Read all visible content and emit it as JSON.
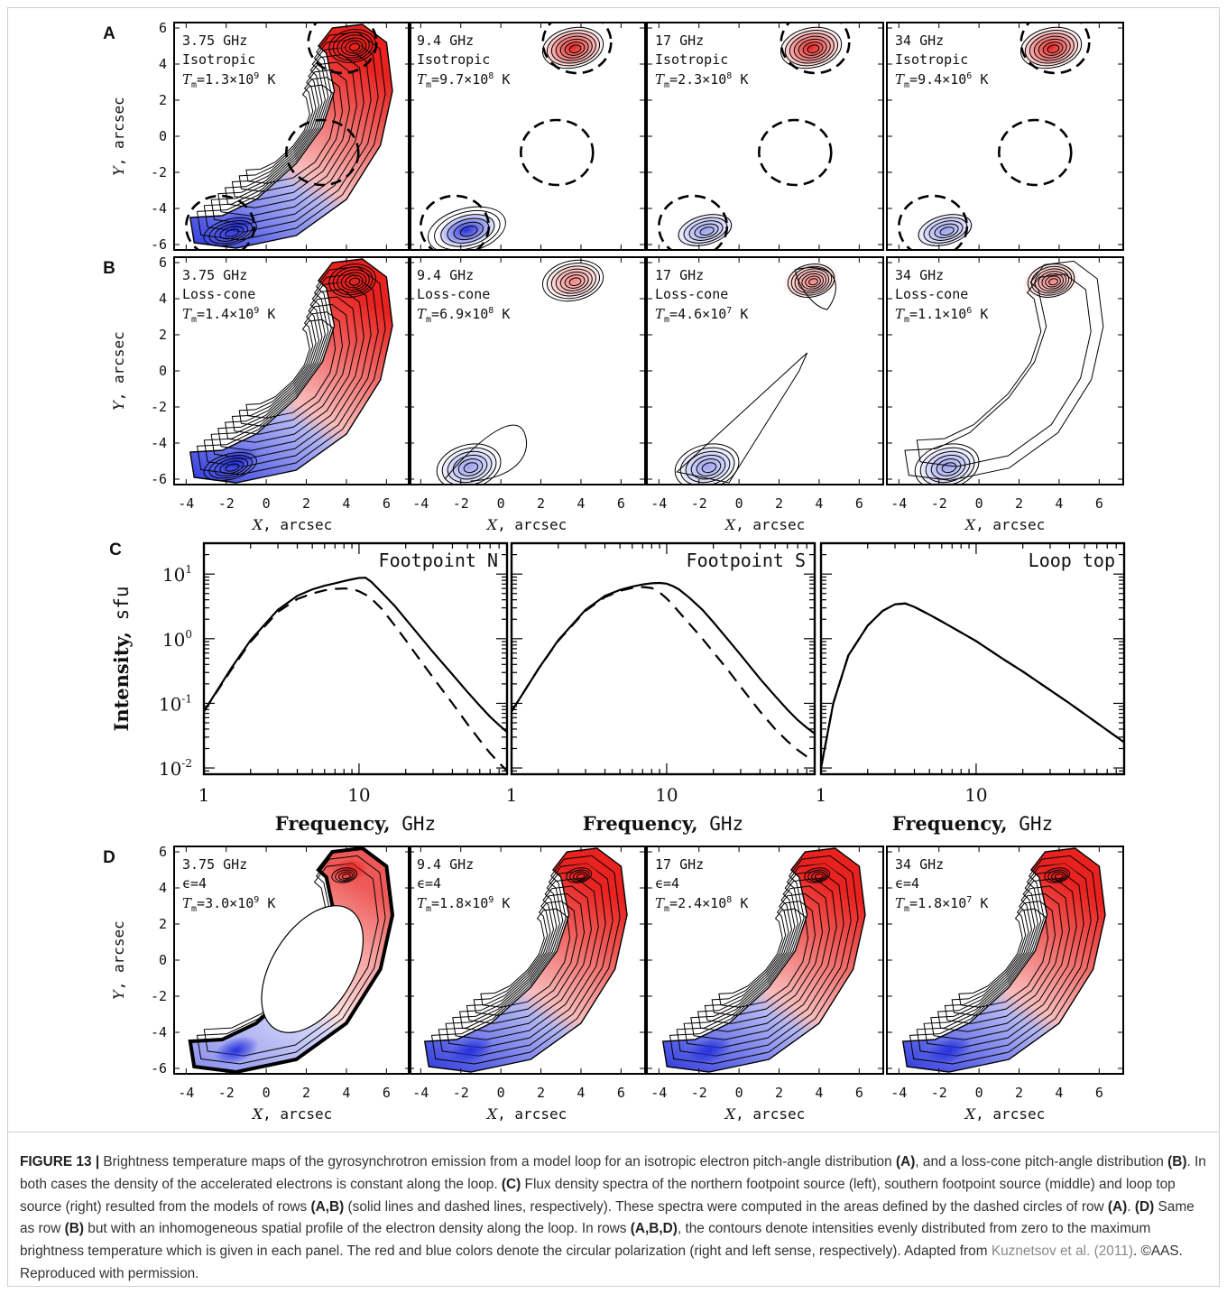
{
  "rows": [
    {
      "letter": "A",
      "panels": [
        {
          "freq": "3.75 GHz",
          "dist": "Isotropic",
          "tm": "1.3×10",
          "tmexp": "9",
          "unit": "K"
        },
        {
          "freq": "9.4 GHz",
          "dist": "Isotropic",
          "tm": "9.7×10",
          "tmexp": "8",
          "unit": "K"
        },
        {
          "freq": "17 GHz",
          "dist": "Isotropic",
          "tm": "2.3×10",
          "tmexp": "8",
          "unit": "K"
        },
        {
          "freq": "34 GHz",
          "dist": "Isotropic",
          "tm": "9.4×10",
          "tmexp": "6",
          "unit": "K"
        }
      ]
    },
    {
      "letter": "B",
      "panels": [
        {
          "freq": "3.75 GHz",
          "dist": "Loss-cone",
          "tm": "1.4×10",
          "tmexp": "9",
          "unit": "K"
        },
        {
          "freq": "9.4 GHz",
          "dist": "Loss-cone",
          "tm": "6.9×10",
          "tmexp": "8",
          "unit": "K"
        },
        {
          "freq": "17 GHz",
          "dist": "Loss-cone",
          "tm": "4.6×10",
          "tmexp": "7",
          "unit": "K"
        },
        {
          "freq": "34 GHz",
          "dist": "Loss-cone",
          "tm": "1.1×10",
          "tmexp": "6",
          "unit": "K"
        }
      ]
    },
    {
      "letter": "D",
      "panels": [
        {
          "freq": "3.75 GHz",
          "dist": "ϵ=4",
          "tm": "3.0×10",
          "tmexp": "9",
          "unit": "K"
        },
        {
          "freq": "9.4 GHz",
          "dist": "ϵ=4",
          "tm": "1.8×10",
          "tmexp": "9",
          "unit": "K"
        },
        {
          "freq": "17 GHz",
          "dist": "ϵ=4",
          "tm": "2.4×10",
          "tmexp": "8",
          "unit": "K"
        },
        {
          "freq": "34 GHz",
          "dist": "ϵ=4",
          "tm": "1.8×10",
          "tmexp": "7",
          "unit": "K"
        }
      ]
    }
  ],
  "map_axes": {
    "x_ticks": [
      "-4",
      "-2",
      "0",
      "2",
      "4",
      "6"
    ],
    "y_ticks": [
      "6",
      "4",
      "2",
      "0",
      "-2",
      "-4",
      "-6"
    ],
    "x_label_var": "X",
    "y_label_var": "Y",
    "label_unit": ", arcsec",
    "tm_var": "T",
    "tm_sub": "m"
  },
  "spectra": {
    "letter": "C",
    "y_label_bold": "Intensity,",
    "y_label_unit": " sfu",
    "x_label_bold": "Frequency,",
    "x_label_unit": " GHz",
    "y_ticks": [
      {
        "base": "10",
        "exp": "1"
      },
      {
        "base": "10",
        "exp": "0"
      },
      {
        "base": "10",
        "exp": "-1"
      },
      {
        "base": "10",
        "exp": "-2"
      }
    ],
    "x_ticks": [
      "1",
      "10"
    ],
    "panels": [
      "Footpoint N",
      "Footpoint S",
      "Loop top"
    ]
  },
  "chart_data": [
    {
      "type": "line",
      "title": "Footpoint N",
      "xlabel": "Frequency, GHz",
      "ylabel": "Intensity, sfu",
      "xscale": "log",
      "yscale": "log",
      "xlim": [
        1,
        90
      ],
      "ylim": [
        0.008,
        30
      ],
      "series": [
        {
          "style": "solid",
          "x": [
            1,
            1.5,
            2,
            3,
            4,
            5,
            6,
            7,
            8,
            9,
            10,
            11,
            12,
            14,
            17,
            20,
            25,
            30,
            40,
            50,
            60,
            70,
            80,
            90
          ],
          "y": [
            0.075,
            0.35,
            0.95,
            2.8,
            4.6,
            5.8,
            6.6,
            7.2,
            7.8,
            8.3,
            8.7,
            8.8,
            7.6,
            5.2,
            3.2,
            2.0,
            1.05,
            0.62,
            0.28,
            0.15,
            0.092,
            0.062,
            0.046,
            0.036
          ]
        },
        {
          "style": "dashed",
          "x": [
            1,
            1.5,
            2,
            3,
            4,
            5,
            6,
            7,
            8,
            9,
            10,
            11,
            12,
            14,
            17,
            20,
            25,
            30,
            40,
            50,
            60,
            70,
            80,
            90
          ],
          "y": [
            0.075,
            0.33,
            0.9,
            2.6,
            4.1,
            5.0,
            5.6,
            5.9,
            6.0,
            5.9,
            5.4,
            4.8,
            4.2,
            2.9,
            1.6,
            0.95,
            0.45,
            0.25,
            0.1,
            0.048,
            0.027,
            0.017,
            0.012,
            0.009
          ]
        }
      ]
    },
    {
      "type": "line",
      "title": "Footpoint S",
      "xlabel": "Frequency, GHz",
      "ylabel": "Intensity, sfu",
      "xscale": "log",
      "yscale": "log",
      "xlim": [
        1,
        90
      ],
      "ylim": [
        0.008,
        30
      ],
      "series": [
        {
          "style": "solid",
          "x": [
            1,
            1.5,
            2,
            3,
            4,
            5,
            6,
            7,
            8,
            9,
            10,
            11,
            12,
            14,
            17,
            20,
            25,
            30,
            40,
            50,
            60,
            70,
            80,
            90
          ],
          "y": [
            0.075,
            0.35,
            0.95,
            2.8,
            4.6,
            5.7,
            6.4,
            6.9,
            7.2,
            7.3,
            7.1,
            6.5,
            5.8,
            4.3,
            2.8,
            1.8,
            0.95,
            0.56,
            0.24,
            0.13,
            0.08,
            0.055,
            0.042,
            0.034
          ]
        },
        {
          "style": "dashed",
          "x": [
            1,
            1.5,
            2,
            3,
            4,
            5,
            6,
            7,
            8,
            9,
            10,
            11,
            12,
            14,
            17,
            20,
            25,
            30,
            40,
            50,
            60,
            70,
            80,
            90
          ],
          "y": [
            0.075,
            0.35,
            0.93,
            2.7,
            4.4,
            5.5,
            6.1,
            6.3,
            6.1,
            5.2,
            4.2,
            3.3,
            2.6,
            1.7,
            1.0,
            0.62,
            0.32,
            0.18,
            0.075,
            0.04,
            0.026,
            0.019,
            0.015,
            0.013
          ]
        }
      ]
    },
    {
      "type": "line",
      "title": "Loop top",
      "xlabel": "Frequency, GHz",
      "ylabel": "Intensity, sfu",
      "xscale": "log",
      "yscale": "log",
      "xlim": [
        1,
        90
      ],
      "ylim": [
        0.008,
        30
      ],
      "series": [
        {
          "style": "solid",
          "x": [
            1,
            1.2,
            1.5,
            2,
            2.5,
            3,
            3.5,
            4,
            5,
            6,
            8,
            10,
            15,
            20,
            30,
            40,
            60,
            90
          ],
          "y": [
            0.01,
            0.1,
            0.55,
            1.6,
            2.7,
            3.4,
            3.5,
            3.1,
            2.35,
            1.85,
            1.25,
            0.92,
            0.48,
            0.31,
            0.16,
            0.1,
            0.05,
            0.025
          ]
        },
        {
          "style": "dashed",
          "x": [
            1,
            1.2,
            1.5,
            2,
            2.5,
            3,
            3.5,
            4,
            5,
            6,
            8,
            10,
            15,
            20,
            30,
            40,
            60,
            90
          ],
          "y": [
            0.01,
            0.1,
            0.55,
            1.6,
            2.7,
            3.4,
            3.5,
            3.1,
            2.35,
            1.85,
            1.25,
            0.92,
            0.48,
            0.31,
            0.16,
            0.1,
            0.05,
            0.025
          ]
        }
      ]
    }
  ],
  "caption": {
    "figure_label": "FIGURE 13 |",
    "t1": " Brightness temperature maps of the gyrosynchrotron emission from a model loop for an isotropic electron pitch-angle distribution ",
    "b1": "(A)",
    "t2": ", and a loss-cone pitch-angle distribution ",
    "b2": "(B)",
    "t3": ". In both cases the density of the accelerated electrons is constant along the loop. ",
    "b3": "(C)",
    "t4": " Flux density spectra of the northern footpoint source (left), southern footpoint source (middle) and loop top source (right) resulted from the models of rows ",
    "b4": "(A,B)",
    "t5": " (solid lines and dashed lines, respectively). These spectra were computed in the areas defined by the dashed circles of row ",
    "b5": "(A)",
    "t6": ". ",
    "b6": "(D)",
    "t7": " Same as row ",
    "b7": "(B)",
    "t8": " but with an inhomogeneous spatial profile of the electron density along the loop. In rows ",
    "b8": "(A,B,D)",
    "t9": ", the contours denote intensities evenly distributed from zero to the maximum brightness temperature which is given in each panel. The red and blue colors denote the circular polarization (right and left sense, respectively). Adapted from ",
    "cite": "Kuznetsov et al. (2011)",
    "t10": ". ©AAS. Reproduced with permission."
  },
  "colors": {
    "red": "#e8221f",
    "blue": "#2530dc",
    "frame": "#000000",
    "caption_text": "#333333",
    "citation": "#8a8a8a"
  }
}
